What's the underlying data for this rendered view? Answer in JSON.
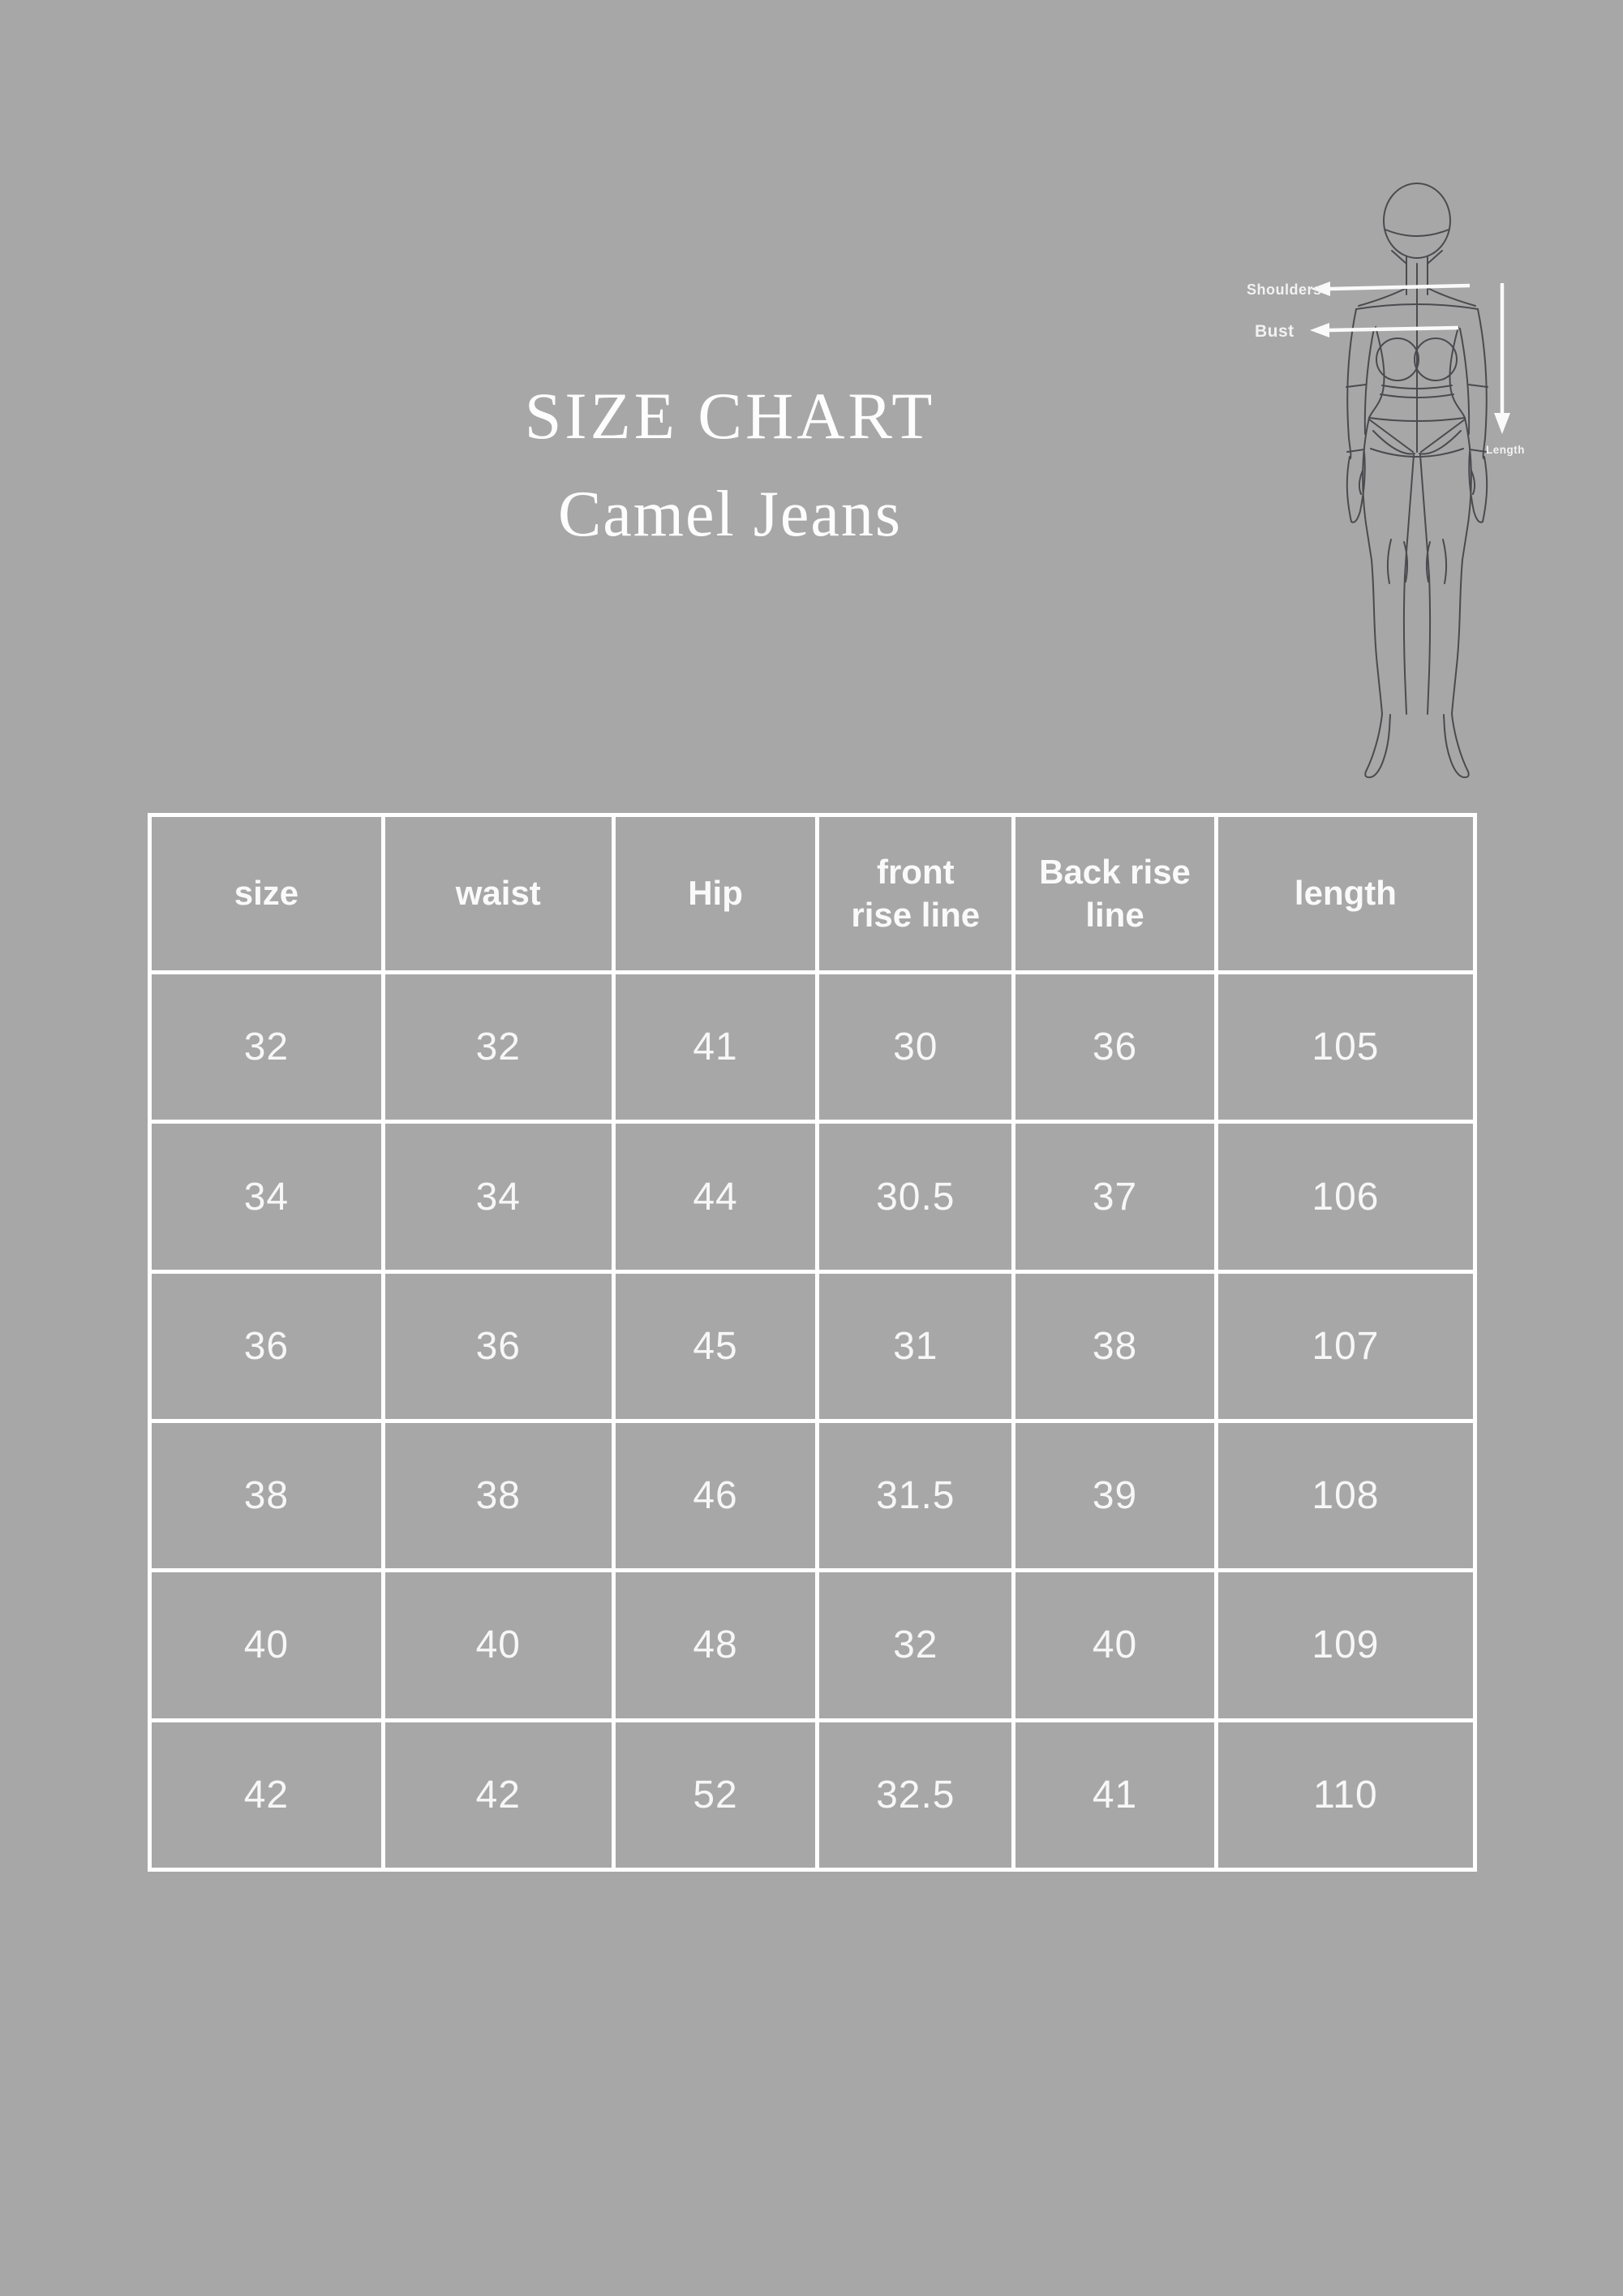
{
  "colors": {
    "background": "#a7a7a7",
    "table_grid": "#ffffff",
    "text": "#fafafa",
    "sketch_line": "#4b4b4f"
  },
  "header": {
    "title": "SIZE CHART",
    "subtitle": "Camel Jeans"
  },
  "figure": {
    "labels": {
      "shoulders": "Shoulders",
      "bust": "Bust",
      "length": "Length"
    }
  },
  "chart_data": {
    "type": "table",
    "title": "SIZE CHART",
    "subtitle": "Camel Jeans",
    "columns": [
      "size",
      "waist",
      "Hip",
      "front\nrise line",
      "Back rise\nline",
      "length"
    ],
    "rows": [
      [
        "32",
        "32",
        "41",
        "30",
        "36",
        "105"
      ],
      [
        "34",
        "34",
        "44",
        "30.5",
        "37",
        "106"
      ],
      [
        "36",
        "36",
        "45",
        "31",
        "38",
        "107"
      ],
      [
        "38",
        "38",
        "46",
        "31.5",
        "39",
        "108"
      ],
      [
        "40",
        "40",
        "48",
        "32",
        "40",
        "109"
      ],
      [
        "42",
        "42",
        "52",
        "32.5",
        "41",
        "110"
      ]
    ]
  }
}
